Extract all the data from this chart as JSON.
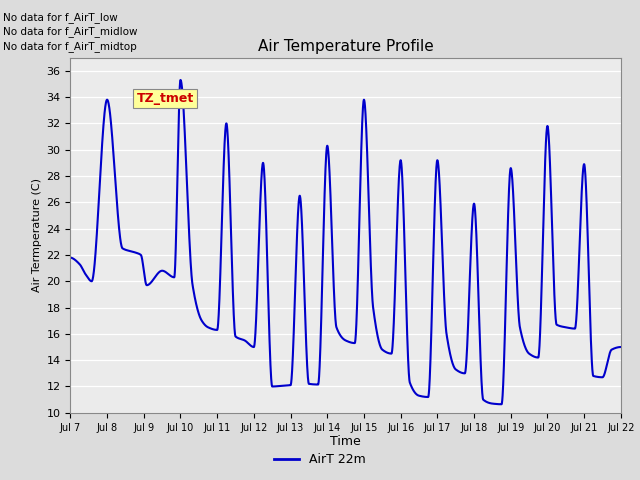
{
  "title": "Air Temperature Profile",
  "xlabel": "Time",
  "ylabel": "Air Termperature (C)",
  "ylim": [
    10,
    37
  ],
  "yticks": [
    10,
    12,
    14,
    16,
    18,
    20,
    22,
    24,
    26,
    28,
    30,
    32,
    34,
    36
  ],
  "line_color": "#0000CC",
  "line_width": 1.5,
  "fig_bg_color": "#DCDCDC",
  "plot_bg_color": "#EBEBEB",
  "annotations_text": [
    "No data for f_AirT_low",
    "No data for f_AirT_midlow",
    "No data for f_AirT_midtop"
  ],
  "legend_label": "AirT 22m",
  "watermark_text": "TZ_tmet",
  "watermark_color": "#CC0000",
  "watermark_bg": "#FFFF99",
  "xtick_labels": [
    "Jul 7",
    "Jul 8",
    "Jul 9",
    "Jul 10",
    "Jul 11",
    "Jul 12",
    "Jul 13",
    "Jul 14",
    "Jul 15",
    "Jul 16",
    "Jul 17",
    "Jul 18",
    "Jul 19",
    "Jul 20",
    "Jul 21",
    "Jul 22"
  ],
  "time_series_x": [
    0.0,
    0.25,
    0.42,
    0.58,
    1.0,
    1.42,
    1.75,
    1.92,
    2.08,
    2.5,
    2.83,
    3.0,
    3.33,
    3.58,
    3.75,
    4.0,
    4.25,
    4.5,
    4.75,
    5.0,
    5.25,
    5.5,
    5.75,
    6.0,
    6.25,
    6.5,
    6.75,
    7.0,
    7.25,
    7.5,
    7.75,
    8.0,
    8.25,
    8.5,
    8.75,
    9.0,
    9.25,
    9.5,
    9.75,
    10.0,
    10.25,
    10.5,
    10.75,
    11.0,
    11.25,
    11.5,
    11.75,
    12.0,
    12.25,
    12.5,
    12.75,
    13.0,
    13.25,
    13.5,
    13.75,
    14.0,
    14.25,
    14.5,
    14.75,
    15.0
  ],
  "time_series_y": [
    21.8,
    21.3,
    20.5,
    20.0,
    33.8,
    22.5,
    22.2,
    22.0,
    19.7,
    20.8,
    20.3,
    35.3,
    19.7,
    17.0,
    16.5,
    16.3,
    32.0,
    15.8,
    15.5,
    15.0,
    29.0,
    12.0,
    12.05,
    12.1,
    26.5,
    12.2,
    12.15,
    30.3,
    16.5,
    15.5,
    15.3,
    33.8,
    18.0,
    14.8,
    14.5,
    29.2,
    12.3,
    11.3,
    11.2,
    29.2,
    16.0,
    13.3,
    13.0,
    25.9,
    11.0,
    10.7,
    10.65,
    28.6,
    16.5,
    14.5,
    14.2,
    31.8,
    16.7,
    16.5,
    16.4,
    28.9,
    12.8,
    12.7,
    14.8,
    15.0
  ]
}
